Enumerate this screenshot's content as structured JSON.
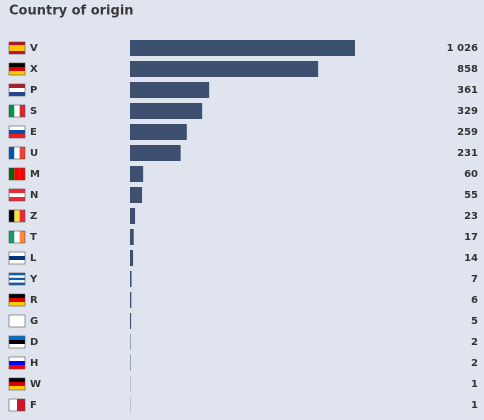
{
  "chart_data": {
    "type": "bar",
    "orientation": "horizontal",
    "title": "Country of origin",
    "categories": [
      "V",
      "X",
      "P",
      "S",
      "E",
      "U",
      "M",
      "N",
      "Z",
      "T",
      "L",
      "Y",
      "R",
      "G",
      "D",
      "H",
      "W",
      "F"
    ],
    "values": [
      1026,
      858,
      361,
      329,
      259,
      231,
      60,
      55,
      23,
      17,
      14,
      7,
      6,
      5,
      2,
      2,
      1,
      1
    ],
    "value_labels": [
      "1 026",
      "858",
      "361",
      "329",
      "259",
      "231",
      "60",
      "55",
      "23",
      "17",
      "14",
      "7",
      "6",
      "5",
      "2",
      "2",
      "1",
      "1"
    ],
    "color": "#3d5070"
  }
}
